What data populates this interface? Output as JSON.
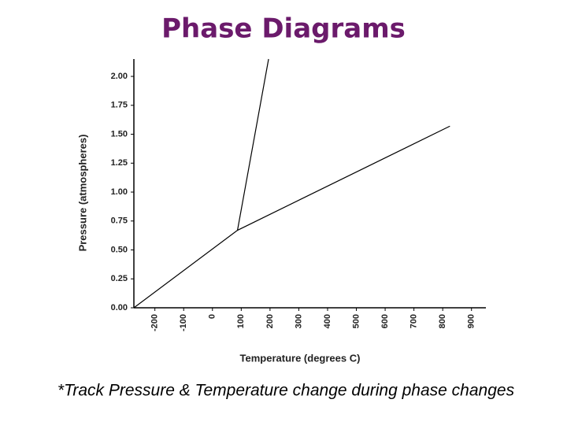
{
  "chart_data": {
    "type": "line",
    "title": "Phase Diagrams",
    "subtitle": "*Track Pressure & Temperature change during phase changes",
    "x_label": "Temperature (degrees C)",
    "y_label": "Pressure (atmospheres)",
    "xlim": [
      -273,
      950
    ],
    "ylim": [
      0,
      2.15
    ],
    "xticks": [
      -200,
      -100,
      0,
      100,
      200,
      300,
      400,
      500,
      600,
      700,
      800,
      900
    ],
    "yticks": [
      {
        "value": 0,
        "label": "0.00"
      },
      {
        "value": 0.25,
        "label": "0.25"
      },
      {
        "value": 0.5,
        "label": "0.50"
      },
      {
        "value": 0.75,
        "label": "0.75"
      },
      {
        "value": 1,
        "label": "1.00"
      },
      {
        "value": 1.25,
        "label": "1.25"
      },
      {
        "value": 1.5,
        "label": "1.50"
      },
      {
        "value": 1.75,
        "label": "1.75"
      },
      {
        "value": 2,
        "label": "2.00"
      }
    ],
    "series": [
      {
        "color": "#000000",
        "x": [
          -273,
          87,
          825
        ],
        "values": [
          0,
          0.67,
          1.57
        ]
      },
      {
        "color": "#000000",
        "x": [
          87,
          195
        ],
        "values": [
          0.67,
          2.15
        ]
      }
    ]
  }
}
